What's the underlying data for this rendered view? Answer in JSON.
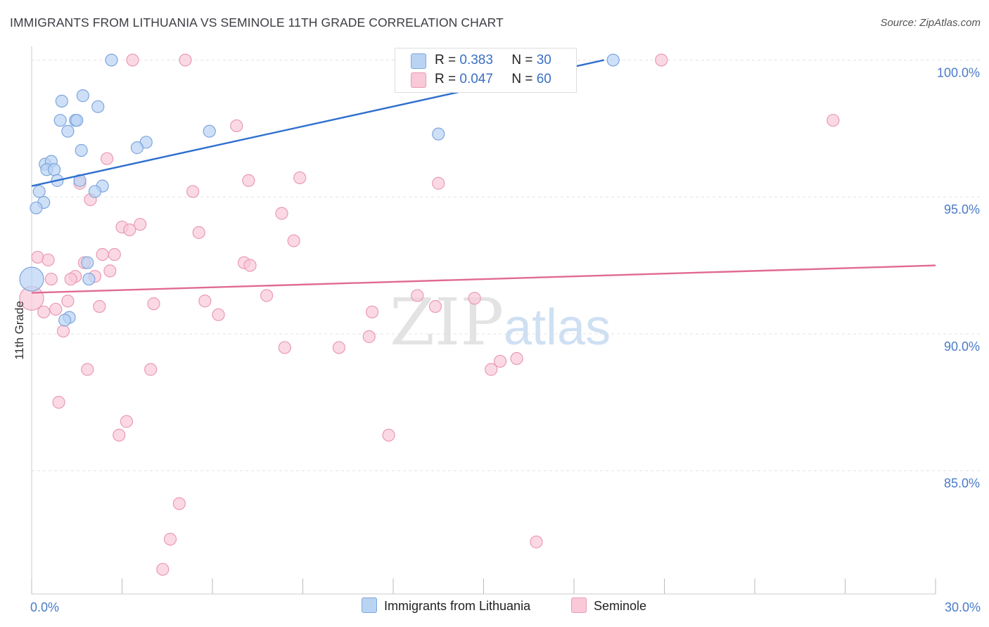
{
  "title": "IMMIGRANTS FROM LITHUANIA VS SEMINOLE 11TH GRADE CORRELATION CHART",
  "source": "Source: ZipAtlas.com",
  "watermark": {
    "zip": "ZIP",
    "atlas": "atlas"
  },
  "legend": {
    "r_label": "R =",
    "n_label": "N =",
    "series": [
      {
        "name": "Immigrants from Lithuania",
        "r": "0.383",
        "n": "30"
      },
      {
        "name": "Seminole",
        "r": "0.047",
        "n": "60"
      }
    ]
  },
  "colors": {
    "blue_fill": "#b9d3f3",
    "blue_stroke": "#7ea6dc",
    "blue_line": "#2f6fce",
    "pink_fill": "#f9c9d8",
    "pink_stroke": "#e99ab5",
    "pink_line": "#e06a94",
    "axis_text": "#4a7bc8",
    "grid": "#e3e3e3"
  },
  "chart_data": {
    "type": "scatter",
    "title": "IMMIGRANTS FROM LITHUANIA VS SEMINOLE 11TH GRADE CORRELATION CHART",
    "xlabel": "",
    "ylabel": "11th Grade",
    "xlim": [
      0,
      30
    ],
    "ylim": [
      80.5,
      100.5
    ],
    "x_tick_labels": [
      "0.0%",
      "30.0%"
    ],
    "y_ticks": [
      {
        "value": 100,
        "label": "100.0%"
      },
      {
        "value": 95,
        "label": "95.0%"
      },
      {
        "value": 90,
        "label": "90.0%"
      },
      {
        "value": 85,
        "label": "85.0%"
      }
    ],
    "series": [
      {
        "name": "Immigrants from Lithuania",
        "color": "#7ea6dc",
        "points": [
          {
            "x": 0.0,
            "y": 92.0,
            "big": true
          },
          {
            "x": 2.65,
            "y": 100.0
          },
          {
            "x": 19.3,
            "y": 100.0
          },
          {
            "x": 1.7,
            "y": 98.7
          },
          {
            "x": 1.0,
            "y": 98.5
          },
          {
            "x": 2.2,
            "y": 98.3
          },
          {
            "x": 0.95,
            "y": 97.8
          },
          {
            "x": 1.45,
            "y": 97.8
          },
          {
            "x": 1.5,
            "y": 97.8
          },
          {
            "x": 1.2,
            "y": 97.4
          },
          {
            "x": 5.9,
            "y": 97.4
          },
          {
            "x": 13.5,
            "y": 97.3
          },
          {
            "x": 3.8,
            "y": 97.0
          },
          {
            "x": 3.5,
            "y": 96.8
          },
          {
            "x": 1.65,
            "y": 96.7
          },
          {
            "x": 0.45,
            "y": 96.2
          },
          {
            "x": 0.65,
            "y": 96.3
          },
          {
            "x": 0.5,
            "y": 96.0
          },
          {
            "x": 0.75,
            "y": 96.0
          },
          {
            "x": 0.85,
            "y": 95.6
          },
          {
            "x": 1.6,
            "y": 95.6
          },
          {
            "x": 2.35,
            "y": 95.4
          },
          {
            "x": 2.1,
            "y": 95.2
          },
          {
            "x": 0.25,
            "y": 95.2
          },
          {
            "x": 0.4,
            "y": 94.8
          },
          {
            "x": 0.15,
            "y": 94.6
          },
          {
            "x": 1.85,
            "y": 92.6
          },
          {
            "x": 1.9,
            "y": 92.0
          },
          {
            "x": 1.25,
            "y": 90.6
          },
          {
            "x": 1.1,
            "y": 90.5
          }
        ],
        "trend": {
          "x1": 0.0,
          "y1": 95.4,
          "x2": 19.0,
          "y2": 100.0
        }
      },
      {
        "name": "Seminole",
        "color": "#e99ab5",
        "points": [
          {
            "x": 0.0,
            "y": 91.3,
            "big": true
          },
          {
            "x": 3.35,
            "y": 100.0
          },
          {
            "x": 5.1,
            "y": 100.0
          },
          {
            "x": 20.9,
            "y": 100.0
          },
          {
            "x": 26.6,
            "y": 97.8
          },
          {
            "x": 6.8,
            "y": 97.6
          },
          {
            "x": 2.5,
            "y": 96.4
          },
          {
            "x": 7.2,
            "y": 95.6
          },
          {
            "x": 8.9,
            "y": 95.7
          },
          {
            "x": 13.5,
            "y": 95.5
          },
          {
            "x": 1.6,
            "y": 95.5
          },
          {
            "x": 5.35,
            "y": 95.2
          },
          {
            "x": 1.95,
            "y": 94.9
          },
          {
            "x": 8.3,
            "y": 94.4
          },
          {
            "x": 3.6,
            "y": 94.0
          },
          {
            "x": 3.0,
            "y": 93.9
          },
          {
            "x": 3.25,
            "y": 93.8
          },
          {
            "x": 5.55,
            "y": 93.7
          },
          {
            "x": 8.7,
            "y": 93.4
          },
          {
            "x": 0.2,
            "y": 92.8
          },
          {
            "x": 2.35,
            "y": 92.9
          },
          {
            "x": 2.75,
            "y": 92.9
          },
          {
            "x": 0.55,
            "y": 92.7
          },
          {
            "x": 1.75,
            "y": 92.6
          },
          {
            "x": 7.05,
            "y": 92.6
          },
          {
            "x": 7.25,
            "y": 92.5
          },
          {
            "x": 2.6,
            "y": 92.3
          },
          {
            "x": 1.45,
            "y": 92.1
          },
          {
            "x": 2.1,
            "y": 92.1
          },
          {
            "x": 0.65,
            "y": 92.0
          },
          {
            "x": 1.3,
            "y": 92.0
          },
          {
            "x": 7.8,
            "y": 91.4
          },
          {
            "x": 12.8,
            "y": 91.4
          },
          {
            "x": 14.7,
            "y": 91.3
          },
          {
            "x": 5.75,
            "y": 91.2
          },
          {
            "x": 1.2,
            "y": 91.2
          },
          {
            "x": 4.05,
            "y": 91.1
          },
          {
            "x": 2.25,
            "y": 91.0
          },
          {
            "x": 13.4,
            "y": 91.0
          },
          {
            "x": 0.8,
            "y": 90.9
          },
          {
            "x": 0.4,
            "y": 90.8
          },
          {
            "x": 11.3,
            "y": 90.8
          },
          {
            "x": 6.2,
            "y": 90.7
          },
          {
            "x": 1.05,
            "y": 90.1
          },
          {
            "x": 11.2,
            "y": 89.9
          },
          {
            "x": 8.4,
            "y": 89.5
          },
          {
            "x": 10.2,
            "y": 89.5
          },
          {
            "x": 15.55,
            "y": 89.0
          },
          {
            "x": 16.1,
            "y": 89.1
          },
          {
            "x": 15.25,
            "y": 88.7
          },
          {
            "x": 1.85,
            "y": 88.7
          },
          {
            "x": 3.95,
            "y": 88.7
          },
          {
            "x": 0.9,
            "y": 87.5
          },
          {
            "x": 3.15,
            "y": 86.8
          },
          {
            "x": 2.9,
            "y": 86.3
          },
          {
            "x": 11.85,
            "y": 86.3
          },
          {
            "x": 4.9,
            "y": 83.8
          },
          {
            "x": 4.6,
            "y": 82.5
          },
          {
            "x": 16.75,
            "y": 82.4
          },
          {
            "x": 4.35,
            "y": 81.4
          }
        ],
        "trend": {
          "x1": 0.0,
          "y1": 91.5,
          "x2": 30.0,
          "y2": 92.5
        }
      }
    ]
  }
}
